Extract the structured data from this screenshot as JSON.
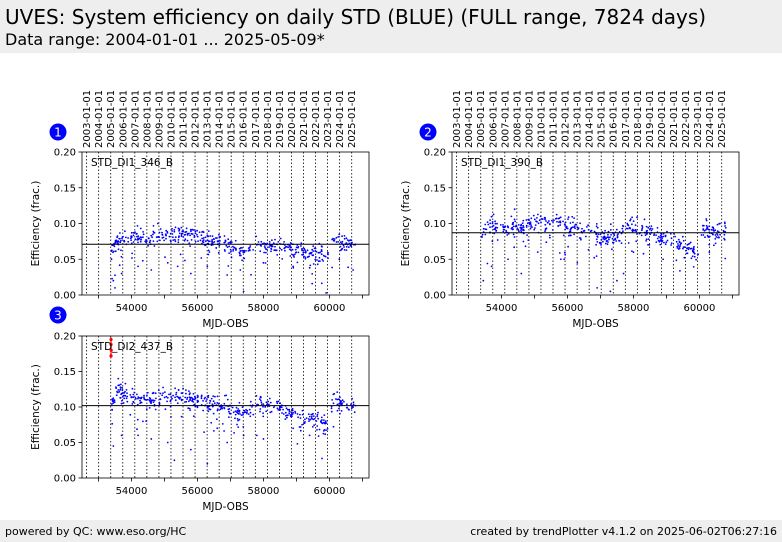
{
  "header": {
    "title": "UVES: System efficiency on daily STD (BLUE) (FULL range, 7824 days)",
    "subtitle": "Data range: 2004-01-01 ... 2025-05-09*"
  },
  "footer": {
    "left": "powered by QC: www.eso.org/HC",
    "right": "created by trendPlotter v4.1.2 on 2025-06-02T06:27:16"
  },
  "colors": {
    "header_bg": "#eeeeee",
    "points": "#0000ff",
    "badge": "#0000ff",
    "outlier": "#ff0000",
    "reference_line": "#000000"
  },
  "chart_data": [
    {
      "type": "scatter",
      "badge": "1",
      "label": "STD_DI1_346_B",
      "xlabel": "MJD-OBS",
      "ylabel": "Efficiency (frac.)",
      "xlim": [
        52500,
        61200
      ],
      "ylim": [
        0,
        0.2
      ],
      "xticks": [
        54000,
        56000,
        58000,
        60000
      ],
      "yticks": [
        0.0,
        0.05,
        0.1,
        0.15,
        0.2
      ],
      "ytick_labels": [
        "0.00",
        "0.05",
        "0.10",
        "0.15",
        "0.20"
      ],
      "reference_value": 0.071,
      "year_labels": [
        "2003-01-01",
        "2004-01-01",
        "2005-01-01",
        "2006-01-01",
        "2007-01-01",
        "2008-01-01",
        "2009-01-01",
        "2010-01-01",
        "2011-01-01",
        "2012-01-01",
        "2013-01-01",
        "2014-01-01",
        "2015-01-01",
        "2016-01-01",
        "2017-01-01",
        "2018-01-01",
        "2019-01-01",
        "2020-01-01",
        "2021-01-01",
        "2022-01-01",
        "2023-01-01",
        "2024-01-01",
        "2025-01-01"
      ],
      "year_mjd": [
        52640,
        53005,
        53371,
        53736,
        54101,
        54466,
        54832,
        55197,
        55562,
        55927,
        56293,
        56658,
        57023,
        57388,
        57754,
        58119,
        58484,
        58849,
        59215,
        59580,
        59945,
        60310,
        60676
      ],
      "trend": [
        [
          53380,
          0.06
        ],
        [
          53600,
          0.076
        ],
        [
          54000,
          0.078
        ],
        [
          54500,
          0.08
        ],
        [
          55000,
          0.082
        ],
        [
          55500,
          0.085
        ],
        [
          56000,
          0.081
        ],
        [
          56500,
          0.075
        ],
        [
          57000,
          0.068
        ],
        [
          57500,
          0.061
        ],
        [
          57800,
          0.073
        ],
        [
          58300,
          0.07
        ],
        [
          58800,
          0.063
        ],
        [
          59300,
          0.06
        ],
        [
          59700,
          0.055
        ],
        [
          59950,
          0.05
        ],
        [
          60100,
          0.078
        ],
        [
          60600,
          0.072
        ]
      ],
      "scatter": 0.006,
      "outliers": [
        [
          53450,
          0.02
        ],
        [
          53700,
          0.03
        ],
        [
          54200,
          0.04
        ],
        [
          54600,
          0.035
        ],
        [
          55100,
          0.045
        ],
        [
          55800,
          0.03
        ],
        [
          56300,
          0.04
        ],
        [
          56900,
          0.028
        ],
        [
          57400,
          0.005
        ],
        [
          58000,
          0.045
        ],
        [
          58900,
          0.04
        ],
        [
          59400,
          0.038
        ],
        [
          59900,
          0.003
        ],
        [
          60300,
          0.05
        ],
        [
          53500,
          0.01
        ],
        [
          54800,
          0.1
        ],
        [
          55400,
          0.04
        ],
        [
          57300,
          0.035
        ]
      ],
      "red_points": []
    },
    {
      "type": "scatter",
      "badge": "2",
      "label": "STD_DI1_390_B",
      "xlabel": "MJD-OBS",
      "ylabel": "Efficiency (frac.)",
      "xlim": [
        52500,
        61200
      ],
      "ylim": [
        0,
        0.2
      ],
      "xticks": [
        54000,
        56000,
        58000,
        60000
      ],
      "yticks": [
        0.0,
        0.05,
        0.1,
        0.15,
        0.2
      ],
      "ytick_labels": [
        "0.00",
        "0.05",
        "0.10",
        "0.15",
        "0.20"
      ],
      "reference_value": 0.087,
      "year_labels": [
        "2003-01-01",
        "2004-01-01",
        "2005-01-01",
        "2006-01-01",
        "2007-01-01",
        "2008-01-01",
        "2009-01-01",
        "2010-01-01",
        "2011-01-01",
        "2012-01-01",
        "2013-01-01",
        "2014-01-01",
        "2015-01-01",
        "2016-01-01",
        "2017-01-01",
        "2018-01-01",
        "2019-01-01",
        "2020-01-01",
        "2021-01-01",
        "2022-01-01",
        "2023-01-01",
        "2024-01-01",
        "2025-01-01"
      ],
      "year_mjd": [
        52640,
        53005,
        53371,
        53736,
        54101,
        54466,
        54832,
        55197,
        55562,
        55927,
        56293,
        56658,
        57023,
        57388,
        57754,
        58119,
        58484,
        58849,
        59215,
        59580,
        59945,
        60310,
        60676
      ],
      "trend": [
        [
          53380,
          0.08
        ],
        [
          53600,
          0.1
        ],
        [
          54000,
          0.092
        ],
        [
          54500,
          0.095
        ],
        [
          55000,
          0.1
        ],
        [
          55500,
          0.103
        ],
        [
          56000,
          0.095
        ],
        [
          56500,
          0.09
        ],
        [
          57000,
          0.082
        ],
        [
          57500,
          0.078
        ],
        [
          57800,
          0.095
        ],
        [
          58300,
          0.09
        ],
        [
          58800,
          0.08
        ],
        [
          59300,
          0.072
        ],
        [
          59700,
          0.065
        ],
        [
          59950,
          0.058
        ],
        [
          60100,
          0.09
        ],
        [
          60600,
          0.085
        ]
      ],
      "scatter": 0.007,
      "outliers": [
        [
          53450,
          0.02
        ],
        [
          53700,
          0.04
        ],
        [
          54200,
          0.05
        ],
        [
          54600,
          0.03
        ],
        [
          55100,
          0.06
        ],
        [
          55800,
          0.05
        ],
        [
          56300,
          0.045
        ],
        [
          56900,
          0.01
        ],
        [
          57300,
          0.005
        ],
        [
          57500,
          0.02
        ],
        [
          58000,
          0.06
        ],
        [
          58900,
          0.05
        ],
        [
          59400,
          0.065
        ],
        [
          60300,
          0.06
        ],
        [
          54400,
          0.12
        ],
        [
          54300,
          0.11
        ],
        [
          55900,
          0.05
        ],
        [
          57700,
          0.03
        ]
      ],
      "red_points": []
    },
    {
      "type": "scatter",
      "badge": "3",
      "label": "STD_DI2_437_B",
      "xlabel": "MJD-OBS",
      "ylabel": "Efficiency (frac.)",
      "xlim": [
        52500,
        61200
      ],
      "ylim": [
        0,
        0.2
      ],
      "xticks": [
        54000,
        56000,
        58000,
        60000
      ],
      "yticks": [
        0.0,
        0.05,
        0.1,
        0.15,
        0.2
      ],
      "ytick_labels": [
        "0.00",
        "0.05",
        "0.10",
        "0.15",
        "0.20"
      ],
      "reference_value": 0.102,
      "year_labels": [],
      "year_mjd": [
        52640,
        53005,
        53371,
        53736,
        54101,
        54466,
        54832,
        55197,
        55562,
        55927,
        56293,
        56658,
        57023,
        57388,
        57754,
        58119,
        58484,
        58849,
        59215,
        59580,
        59945,
        60310,
        60676
      ],
      "trend": [
        [
          53380,
          0.1
        ],
        [
          53600,
          0.125
        ],
        [
          54000,
          0.112
        ],
        [
          54500,
          0.11
        ],
        [
          55000,
          0.112
        ],
        [
          55500,
          0.115
        ],
        [
          56000,
          0.108
        ],
        [
          56500,
          0.105
        ],
        [
          57000,
          0.098
        ],
        [
          57500,
          0.092
        ],
        [
          57800,
          0.108
        ],
        [
          58300,
          0.1
        ],
        [
          58800,
          0.092
        ],
        [
          59300,
          0.085
        ],
        [
          59700,
          0.082
        ],
        [
          59950,
          0.072
        ],
        [
          60100,
          0.108
        ],
        [
          60600,
          0.1
        ]
      ],
      "scatter": 0.006,
      "outliers": [
        [
          53450,
          0.045
        ],
        [
          53700,
          0.06
        ],
        [
          54200,
          0.06
        ],
        [
          54600,
          0.055
        ],
        [
          55100,
          0.05
        ],
        [
          55800,
          0.04
        ],
        [
          56300,
          0.02
        ],
        [
          56900,
          0.05
        ],
        [
          57400,
          0.06
        ],
        [
          58000,
          0.055
        ],
        [
          58900,
          0.07
        ],
        [
          59400,
          0.06
        ],
        [
          55300,
          0.025
        ],
        [
          56600,
          0.07
        ],
        [
          57800,
          0.06
        ],
        [
          53600,
          0.14
        ]
      ],
      "red_points": [
        [
          53380,
          0.195
        ],
        [
          53380,
          0.188
        ],
        [
          53385,
          0.18
        ],
        [
          53380,
          0.172
        ]
      ]
    }
  ]
}
